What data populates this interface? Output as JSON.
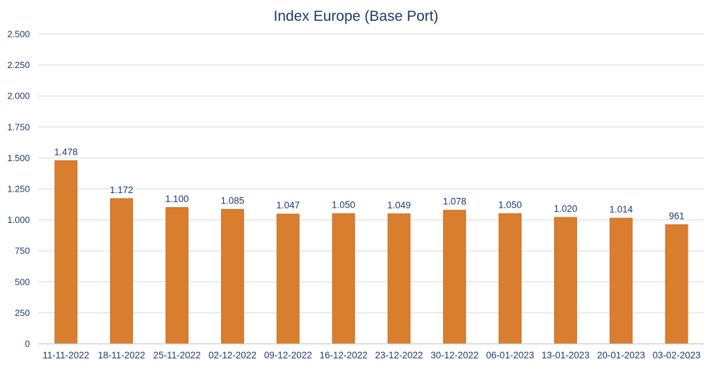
{
  "chart_data": {
    "type": "bar",
    "title": "Index Europe (Base Port)",
    "categories": [
      "11-11-2022",
      "18-11-2022",
      "25-11-2022",
      "02-12-2022",
      "09-12-2022",
      "16-12-2022",
      "23-12-2022",
      "30-12-2022",
      "06-01-2023",
      "13-01-2023",
      "20-01-2023",
      "03-02-2023"
    ],
    "values": [
      1478,
      1172,
      1100,
      1085,
      1047,
      1050,
      1049,
      1078,
      1050,
      1020,
      1014,
      961
    ],
    "data_labels": [
      "1.478",
      "1.172",
      "1.100",
      "1.085",
      "1.047",
      "1.050",
      "1.049",
      "1.078",
      "1.050",
      "1.020",
      "1.014",
      "961"
    ],
    "y_ticks": [
      0,
      250,
      500,
      750,
      1000,
      1250,
      1500,
      1750,
      2000,
      2250,
      2500
    ],
    "y_tick_labels": [
      "0",
      "250",
      "500",
      "750",
      "1.000",
      "1.250",
      "1.500",
      "1.750",
      "2.000",
      "2.250",
      "2.500"
    ],
    "ylim": [
      0,
      2500
    ],
    "grid": true,
    "legend": "none",
    "colors": {
      "bar": "#d97e2e",
      "bar_edge": "#c96f22",
      "text": "#1f3a6e"
    }
  }
}
